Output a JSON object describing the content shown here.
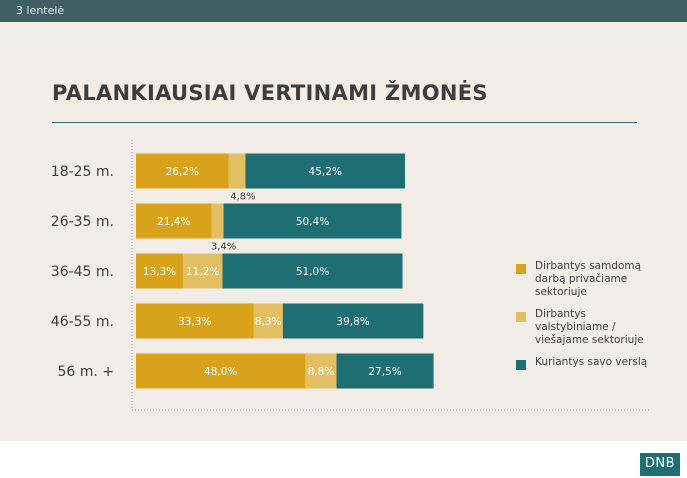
{
  "header": {
    "tag": "3 lentelė"
  },
  "logo": {
    "text": "DNB"
  },
  "chart_data": {
    "type": "bar",
    "orientation": "horizontal",
    "stacked": true,
    "title": "PALANKIAUSIAI VERTINAMI ŽMONĖS",
    "categories": [
      "18-25 m.",
      "26-35 m.",
      "36-45 m.",
      "46-55 m.",
      "56 m. +"
    ],
    "series": [
      {
        "name": "Dirbantys samdomą darbą privačiame sektoriuje",
        "color": "#d9a21b",
        "values": [
          26.2,
          21.4,
          13.3,
          33.3,
          48.0
        ],
        "labels": [
          "26,2%",
          "21,4%",
          "13,3%",
          "33,3%",
          "48,0%"
        ]
      },
      {
        "name": "Dirbantys valstybiniame / viešajame sektoriuje",
        "color": "#e3bf63",
        "values": [
          4.8,
          3.4,
          11.2,
          8.3,
          8.8
        ],
        "labels": [
          "4,8%",
          "3,4%",
          "11,2%",
          "8,3%",
          "8,8%"
        ]
      },
      {
        "name": "Kuriantys savo verslą",
        "color": "#1f6e73",
        "values": [
          45.2,
          50.4,
          51.0,
          39.8,
          27.5
        ],
        "labels": [
          "45,2%",
          "50,4%",
          "51,0%",
          "39,8%",
          "27,5%"
        ]
      }
    ],
    "legend_position": "right",
    "grid": false
  }
}
